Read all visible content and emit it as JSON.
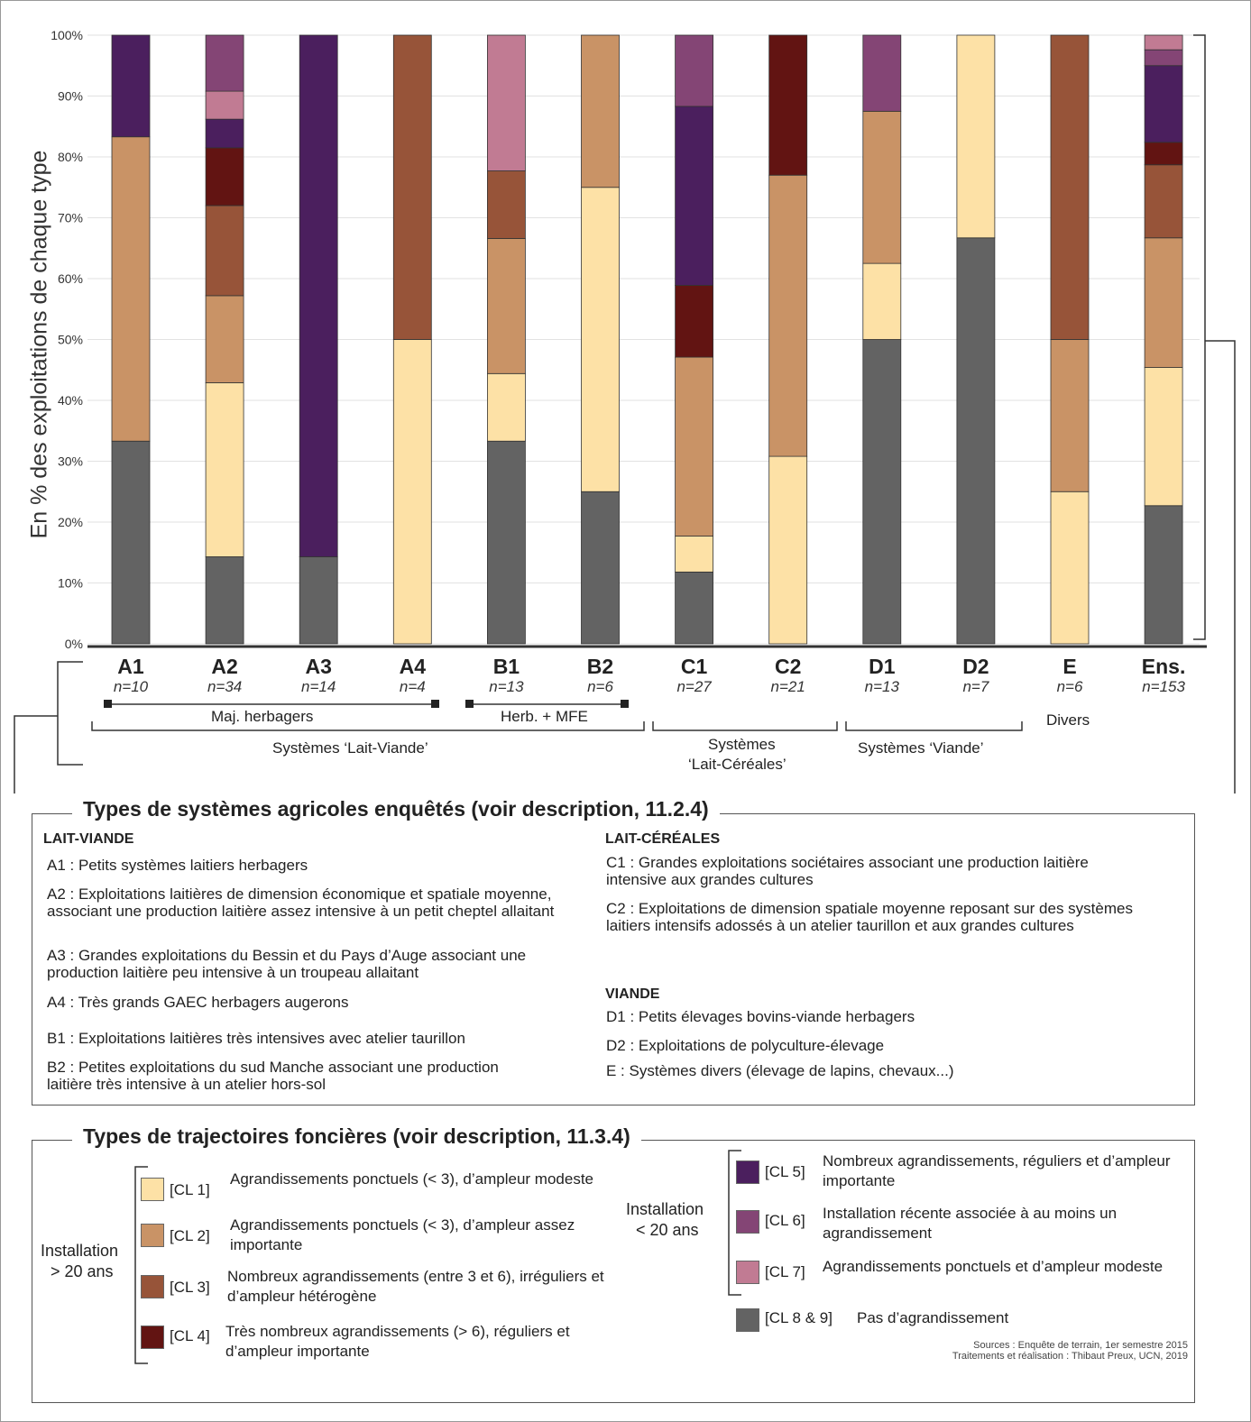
{
  "chart_data": {
    "type": "bar",
    "stacked": true,
    "ylabel": "En % des exploitations de chaque type",
    "ylim": [
      0,
      100
    ],
    "yticks": [
      "0%",
      "10%",
      "20%",
      "30%",
      "40%",
      "50%",
      "60%",
      "70%",
      "80%",
      "90%",
      "100%"
    ],
    "grid": true,
    "categories": [
      "A1",
      "A2",
      "A3",
      "A4",
      "B1",
      "B2",
      "C1",
      "C2",
      "D1",
      "D2",
      "E",
      "Ens."
    ],
    "n_labels": [
      "n=10",
      "n=34",
      "n=14",
      "n=4",
      "n=13",
      "n=6",
      "n=27",
      "n=21",
      "n=13",
      "n=7",
      "n=6",
      "n=153"
    ],
    "series": [
      {
        "name": "[CL 8 & 9]",
        "color": "#636363",
        "values": [
          33.3,
          14.3,
          14.3,
          0,
          33.3,
          25,
          11.8,
          0,
          50,
          66.7,
          0,
          22.7
        ]
      },
      {
        "name": "[CL 1]",
        "color": "#fde1a6",
        "values": [
          0,
          28.6,
          0,
          50,
          11.1,
          50,
          5.9,
          30.8,
          12.5,
          33.3,
          25,
          22.7
        ]
      },
      {
        "name": "[CL 2]",
        "color": "#c99366",
        "values": [
          50,
          14.3,
          0,
          0,
          22.2,
          25,
          29.4,
          46.2,
          25,
          0,
          25,
          21.3
        ]
      },
      {
        "name": "[CL 3]",
        "color": "#975439",
        "values": [
          0,
          14.8,
          0,
          50,
          11.1,
          0,
          0,
          0,
          0,
          0,
          50,
          12
        ]
      },
      {
        "name": "[CL 4]",
        "color": "#621412",
        "values": [
          0,
          9.5,
          0,
          0,
          0,
          0,
          11.8,
          23,
          0,
          0,
          0,
          3.7
        ]
      },
      {
        "name": "[CL 5]",
        "color": "#4b1f5e",
        "values": [
          16.7,
          4.7,
          85.7,
          0,
          0,
          0,
          29.4,
          0,
          0,
          0,
          0,
          12.6
        ]
      },
      {
        "name": "[CL 6]",
        "color": "#844575",
        "values": [
          0,
          0,
          0,
          0,
          0,
          0,
          11.7,
          0,
          12.5,
          0,
          0,
          2.6
        ]
      },
      {
        "name": "[CL 7]",
        "color": "#c17b93",
        "values": [
          0,
          4.6,
          0,
          0,
          22.3,
          0,
          0,
          0,
          0,
          0,
          0,
          2.4
        ]
      },
      {
        "name": "",
        "color": "#844575",
        "values": [
          0,
          9.2,
          0,
          0,
          0,
          0,
          0,
          0,
          0,
          0,
          0,
          0
        ]
      },
      {
        "name": "",
        "color": "#c17b93",
        "values": [
          0,
          0,
          0,
          0,
          0,
          0,
          0,
          0,
          0,
          0,
          0,
          0
        ]
      }
    ]
  },
  "groups": {
    "maj_herbagers": "Maj. herbagers",
    "herb_mfe": "Herb. + MFE",
    "lait_viande": "Systèmes ‘Lait-Viande’",
    "lait_cereales_1": "Systèmes",
    "lait_cereales_2": "‘Lait-Céréales’",
    "viande": "Systèmes ‘Viande’",
    "divers": "Divers"
  },
  "types_box": {
    "title": "Types de systèmes agricoles enquêtés (voir description, 11.2.4)",
    "lait_viande_heading": "LAIT-VIANDE",
    "lait_cereales_heading": "LAIT-CÉRÉALES",
    "viande_heading": "VIANDE",
    "a1": "A1 : Petits systèmes laitiers herbagers",
    "a2": "A2 : Exploitations laitières de dimension économique et spatiale moyenne, associant une production laitière assez intensive à un petit cheptel allaitant",
    "a3": "A3 : Grandes exploitations du Bessin et du Pays d’Auge associant une production laitière peu intensive à un troupeau allaitant",
    "a4": "A4 : Très grands GAEC herbagers augerons",
    "b1": "B1 : Exploitations laitières très intensives avec atelier taurillon",
    "b2": "B2 : Petites exploitations du sud Manche associant une production laitière très intensive à un atelier hors-sol",
    "c1": "C1 : Grandes exploitations sociétaires associant une production laitière intensive aux grandes cultures",
    "c2": "C2 : Exploitations de dimension spatiale moyenne reposant sur des systèmes laitiers intensifs adossés à un atelier taurillon et aux grandes cultures",
    "d1": "D1 : Petits élevages bovins-viande herbagers",
    "d2": "D2 : Exploitations de polyculture-élevage",
    "e": "E : Systèmes divers (élevage de lapins, chevaux...)"
  },
  "legend_box": {
    "title": "Types de trajectoires foncières (voir description, 11.3.4)",
    "install_old_1": "Installation",
    "install_old_2": "> 20 ans",
    "install_new_1": "Installation",
    "install_new_2": "< 20 ans",
    "cl1_code": "[CL 1]",
    "cl1_desc": "Agrandissements ponctuels (< 3), d’ampleur modeste",
    "cl2_code": "[CL 2]",
    "cl2_desc": "Agrandissements ponctuels (< 3), d’ampleur assez importante",
    "cl3_code": "[CL 3]",
    "cl3_desc": "Nombreux agrandissements (entre 3 et 6), irréguliers et d’ampleur hétérogène",
    "cl4_code": "[CL 4]",
    "cl4_desc": "Très nombreux agrandissements (> 6), réguliers et d’ampleur importante",
    "cl5_code": "[CL 5]",
    "cl5_desc": "Nombreux agrandissements, réguliers et d’ampleur importante",
    "cl6_code": "[CL 6]",
    "cl6_desc": "Installation récente associée à au moins un agrandissement",
    "cl7_code": "[CL 7]",
    "cl7_desc": "Agrandissements ponctuels et d’ampleur modeste",
    "cl89_code": "[CL 8 & 9]",
    "cl89_desc": "Pas d’agrandissement",
    "source_1": "Sources : Enquête de terrain, 1er semestre 2015",
    "source_2": "Traitements et réalisation : Thibaut Preux, UCN, 2019"
  },
  "colors": {
    "cl1": "#fde1a6",
    "cl2": "#c99366",
    "cl3": "#975439",
    "cl4": "#621412",
    "cl5": "#4b1f5e",
    "cl6": "#844575",
    "cl7": "#c17b93",
    "cl89": "#636363"
  }
}
